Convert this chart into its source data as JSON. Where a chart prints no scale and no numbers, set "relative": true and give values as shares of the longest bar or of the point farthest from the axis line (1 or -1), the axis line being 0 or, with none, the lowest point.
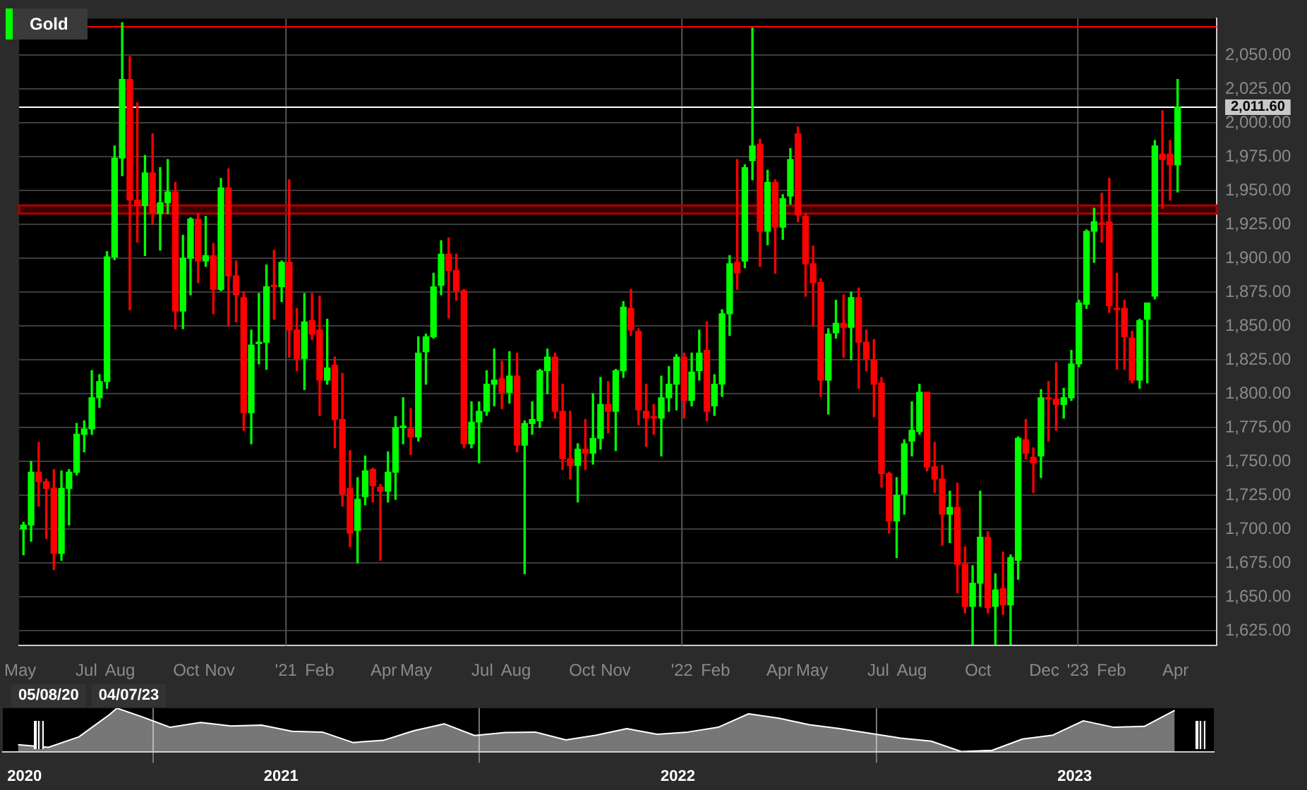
{
  "chart_data": [
    {
      "type": "candlestick",
      "legend": "top left",
      "grid": "y",
      "xlim": [
        "2020-04-30",
        "2023-05-09"
      ],
      "xticks": [
        {
          "value": "2020-05-01",
          "label": "May"
        },
        {
          "value": "2020-07-01",
          "label": "Jul"
        },
        {
          "value": "2020-08-01",
          "label": "Aug"
        },
        {
          "value": "2020-10-01",
          "label": "Oct"
        },
        {
          "value": "2020-11-01",
          "label": "Nov"
        },
        {
          "value": "2021-01-01",
          "label": "'21"
        },
        {
          "value": "2021-02-01",
          "label": "Feb"
        },
        {
          "value": "2021-04-01",
          "label": "Apr"
        },
        {
          "value": "2021-05-01",
          "label": "May"
        },
        {
          "value": "2021-07-01",
          "label": "Jul"
        },
        {
          "value": "2021-08-01",
          "label": "Aug"
        },
        {
          "value": "2021-10-01",
          "label": "Oct"
        },
        {
          "value": "2021-11-01",
          "label": "Nov"
        },
        {
          "value": "2022-01-01",
          "label": "'22"
        },
        {
          "value": "2022-02-01",
          "label": "Feb"
        },
        {
          "value": "2022-04-01",
          "label": "Apr"
        },
        {
          "value": "2022-05-01",
          "label": "May"
        },
        {
          "value": "2022-07-01",
          "label": "Jul"
        },
        {
          "value": "2022-08-01",
          "label": "Aug"
        },
        {
          "value": "2022-10-01",
          "label": "Oct"
        },
        {
          "value": "2022-12-01",
          "label": "Dec"
        },
        {
          "value": "2023-01-01",
          "label": "'23"
        },
        {
          "value": "2023-02-01",
          "label": "Feb"
        },
        {
          "value": "2023-04-01",
          "label": "Apr"
        }
      ],
      "ylim": [
        1614,
        2077
      ],
      "yticks": [
        {
          "value": 1625,
          "label": "1,625.00"
        },
        {
          "value": 1650,
          "label": "1,650.00"
        },
        {
          "value": 1675,
          "label": "1,675.00"
        },
        {
          "value": 1700,
          "label": "1,700.00"
        },
        {
          "value": 1725,
          "label": "1,725.00"
        },
        {
          "value": 1750,
          "label": "1,750.00"
        },
        {
          "value": 1775,
          "label": "1,775.00"
        },
        {
          "value": 1800,
          "label": "1,800.00"
        },
        {
          "value": 1825,
          "label": "1,825.00"
        },
        {
          "value": 1850,
          "label": "1,850.00"
        },
        {
          "value": 1875,
          "label": "1,875.00"
        },
        {
          "value": 1900,
          "label": "1,900.00"
        },
        {
          "value": 1925,
          "label": "1,925.00"
        },
        {
          "value": 1950,
          "label": "1,950.00"
        },
        {
          "value": 1975,
          "label": "1,975.00"
        },
        {
          "value": 2000,
          "label": "2,000.00"
        },
        {
          "value": 2025,
          "label": "2,025.00"
        },
        {
          "value": 2050,
          "label": "2,050.00"
        }
      ],
      "ref_lines": [
        {
          "axis": "x",
          "value": "2021-01-01",
          "color": "#555555"
        },
        {
          "axis": "x",
          "value": "2022-01-01",
          "color": "#555555"
        },
        {
          "axis": "x",
          "value": "2023-01-01",
          "color": "#555555"
        },
        {
          "axis": "y",
          "value": 2071,
          "color": "#ff0000"
        },
        {
          "axis": "y",
          "value": 2011.6,
          "label": "2,011.60",
          "color": "#ffffff"
        }
      ],
      "bands": [
        {
          "axis": "y",
          "from": 1933,
          "to": 1939,
          "color": "#b00000"
        }
      ],
      "series": [
        {
          "name": "Gold",
          "color": "#00ff00",
          "x": [
            "2020-05-04",
            "2020-05-11",
            "2020-05-18",
            "2020-05-25",
            "2020-06-01",
            "2020-06-08",
            "2020-06-15",
            "2020-06-22",
            "2020-06-29",
            "2020-07-06",
            "2020-07-13",
            "2020-07-20",
            "2020-07-27",
            "2020-08-03",
            "2020-08-10",
            "2020-08-17",
            "2020-08-24",
            "2020-08-31",
            "2020-09-07",
            "2020-09-14",
            "2020-09-21",
            "2020-09-28",
            "2020-10-05",
            "2020-10-12",
            "2020-10-19",
            "2020-10-26",
            "2020-11-02",
            "2020-11-09",
            "2020-11-16",
            "2020-11-23",
            "2020-11-30",
            "2020-12-07",
            "2020-12-14",
            "2020-12-21",
            "2020-12-28",
            "2021-01-04",
            "2021-01-11",
            "2021-01-18",
            "2021-01-25",
            "2021-02-01",
            "2021-02-08",
            "2021-02-15",
            "2021-02-22",
            "2021-03-01",
            "2021-03-08",
            "2021-03-15",
            "2021-03-22",
            "2021-03-29",
            "2021-04-05",
            "2021-04-12",
            "2021-04-19",
            "2021-04-26",
            "2021-05-03",
            "2021-05-10",
            "2021-05-17",
            "2021-05-24",
            "2021-05-31",
            "2021-06-07",
            "2021-06-14",
            "2021-06-21",
            "2021-06-28",
            "2021-07-05",
            "2021-07-12",
            "2021-07-19",
            "2021-07-26",
            "2021-08-02",
            "2021-08-09",
            "2021-08-16",
            "2021-08-23",
            "2021-08-30",
            "2021-09-06",
            "2021-09-13",
            "2021-09-20",
            "2021-09-27",
            "2021-10-04",
            "2021-10-11",
            "2021-10-18",
            "2021-10-25",
            "2021-11-01",
            "2021-11-08",
            "2021-11-15",
            "2021-11-22",
            "2021-11-29",
            "2021-12-06",
            "2021-12-13",
            "2021-12-20",
            "2021-12-27",
            "2022-01-03",
            "2022-01-10",
            "2022-01-17",
            "2022-01-24",
            "2022-01-31",
            "2022-02-07",
            "2022-02-14",
            "2022-02-21",
            "2022-02-28",
            "2022-03-07",
            "2022-03-14",
            "2022-03-21",
            "2022-03-28",
            "2022-04-04",
            "2022-04-11",
            "2022-04-18",
            "2022-04-25",
            "2022-05-02",
            "2022-05-09",
            "2022-05-16",
            "2022-05-23",
            "2022-05-30",
            "2022-06-06",
            "2022-06-13",
            "2022-06-20",
            "2022-06-27",
            "2022-07-04",
            "2022-07-11",
            "2022-07-18",
            "2022-07-25",
            "2022-08-01",
            "2022-08-08",
            "2022-08-15",
            "2022-08-22",
            "2022-08-29",
            "2022-09-05",
            "2022-09-12",
            "2022-09-19",
            "2022-09-26",
            "2022-10-03",
            "2022-10-10",
            "2022-10-17",
            "2022-10-24",
            "2022-10-31",
            "2022-11-07",
            "2022-11-14",
            "2022-11-21",
            "2022-11-28",
            "2022-12-05",
            "2022-12-12",
            "2022-12-19",
            "2022-12-26",
            "2023-01-02",
            "2023-01-09",
            "2023-01-16",
            "2023-01-23",
            "2023-01-30",
            "2023-02-06",
            "2023-02-13",
            "2023-02-20",
            "2023-02-27",
            "2023-03-06",
            "2023-03-13",
            "2023-03-20",
            "2023-03-27",
            "2023-04-03"
          ],
          "ohlc": [
            [
              1700,
              1705,
              1681,
              1703
            ],
            [
              1703,
              1750,
              1691,
              1742
            ],
            [
              1742,
              1764,
              1717,
              1735
            ],
            [
              1735,
              1737,
              1693,
              1730
            ],
            [
              1730,
              1744,
              1670,
              1682
            ],
            [
              1682,
              1743,
              1677,
              1730
            ],
            [
              1730,
              1744,
              1703,
              1742
            ],
            [
              1742,
              1778,
              1740,
              1770
            ],
            [
              1770,
              1780,
              1757,
              1774
            ],
            [
              1774,
              1817,
              1770,
              1797
            ],
            [
              1797,
              1814,
              1790,
              1809
            ],
            [
              1809,
              1905,
              1804,
              1901
            ],
            [
              1901,
              1983,
              1899,
              1974
            ],
            [
              1974,
              2074,
              1961,
              2032
            ],
            [
              2032,
              2049,
              1862,
              1943
            ],
            [
              1943,
              2015,
              1912,
              1939
            ],
            [
              1939,
              1976,
              1902,
              1963
            ],
            [
              1963,
              1992,
              1925,
              1933
            ],
            [
              1933,
              1967,
              1906,
              1941
            ],
            [
              1941,
              1973,
              1933,
              1949
            ],
            [
              1949,
              1956,
              1848,
              1861
            ],
            [
              1861,
              1917,
              1848,
              1900
            ],
            [
              1900,
              1930,
              1873,
              1929
            ],
            [
              1929,
              1933,
              1882,
              1898
            ],
            [
              1898,
              1931,
              1894,
              1902
            ],
            [
              1902,
              1911,
              1859,
              1877
            ],
            [
              1877,
              1959,
              1876,
              1952
            ],
            [
              1952,
              1966,
              1850,
              1887
            ],
            [
              1887,
              1898,
              1853,
              1873
            ],
            [
              1871,
              1875,
              1773,
              1786
            ],
            [
              1786,
              1847,
              1763,
              1836
            ],
            [
              1837,
              1874,
              1822,
              1838
            ],
            [
              1838,
              1895,
              1818,
              1879
            ],
            [
              1880,
              1906,
              1855,
              1879
            ],
            [
              1879,
              1898,
              1868,
              1897
            ],
            [
              1897,
              1958,
              1827,
              1847
            ],
            [
              1847,
              1863,
              1817,
              1826
            ],
            [
              1826,
              1874,
              1803,
              1853
            ],
            [
              1854,
              1874,
              1840,
              1844
            ],
            [
              1847,
              1872,
              1784,
              1810
            ],
            [
              1810,
              1855,
              1807,
              1819
            ],
            [
              1821,
              1827,
              1760,
              1781
            ],
            [
              1781,
              1815,
              1717,
              1726
            ],
            [
              1730,
              1758,
              1687,
              1697
            ],
            [
              1699,
              1738,
              1675,
              1722
            ],
            [
              1724,
              1754,
              1718,
              1743
            ],
            [
              1744,
              1745,
              1720,
              1732
            ],
            [
              1731,
              1733,
              1677,
              1728
            ],
            [
              1728,
              1757,
              1720,
              1742
            ],
            [
              1742,
              1783,
              1722,
              1775
            ],
            [
              1775,
              1797,
              1763,
              1776
            ],
            [
              1774,
              1789,
              1755,
              1768
            ],
            [
              1768,
              1842,
              1765,
              1830
            ],
            [
              1831,
              1844,
              1807,
              1842
            ],
            [
              1842,
              1889,
              1841,
              1879
            ],
            [
              1880,
              1913,
              1873,
              1903
            ],
            [
              1903,
              1915,
              1856,
              1891
            ],
            [
              1891,
              1903,
              1869,
              1876
            ],
            [
              1876,
              1877,
              1760,
              1763
            ],
            [
              1763,
              1794,
              1760,
              1779
            ],
            [
              1779,
              1794,
              1749,
              1787
            ],
            [
              1787,
              1817,
              1784,
              1807
            ],
            [
              1807,
              1833,
              1791,
              1810
            ],
            [
              1811,
              1824,
              1789,
              1801
            ],
            [
              1801,
              1831,
              1793,
              1813
            ],
            [
              1813,
              1830,
              1757,
              1762
            ],
            [
              1762,
              1780,
              1667,
              1778
            ],
            [
              1778,
              1794,
              1770,
              1781
            ],
            [
              1780,
              1818,
              1775,
              1817
            ],
            [
              1817,
              1833,
              1800,
              1827
            ],
            [
              1827,
              1830,
              1782,
              1787
            ],
            [
              1787,
              1807,
              1744,
              1752
            ],
            [
              1752,
              1787,
              1737,
              1747
            ],
            [
              1747,
              1763,
              1720,
              1759
            ],
            [
              1759,
              1781,
              1744,
              1756
            ],
            [
              1756,
              1800,
              1748,
              1767
            ],
            [
              1767,
              1812,
              1759,
              1792
            ],
            [
              1792,
              1809,
              1771,
              1787
            ],
            [
              1787,
              1818,
              1758,
              1817
            ],
            [
              1817,
              1868,
              1812,
              1864
            ],
            [
              1863,
              1877,
              1843,
              1847
            ],
            [
              1846,
              1848,
              1777,
              1788
            ],
            [
              1787,
              1807,
              1761,
              1782
            ],
            [
              1783,
              1792,
              1770,
              1782
            ],
            [
              1782,
              1813,
              1754,
              1797
            ],
            [
              1797,
              1820,
              1787,
              1807
            ],
            [
              1807,
              1829,
              1788,
              1827
            ],
            [
              1827,
              1830,
              1782,
              1795
            ],
            [
              1795,
              1830,
              1791,
              1816
            ],
            [
              1817,
              1847,
              1810,
              1830
            ],
            [
              1832,
              1853,
              1780,
              1787
            ],
            [
              1791,
              1814,
              1784,
              1807
            ],
            [
              1807,
              1862,
              1798,
              1859
            ],
            [
              1859,
              1902,
              1843,
              1896
            ],
            [
              1897,
              1973,
              1877,
              1889
            ],
            [
              1898,
              1969,
              1893,
              1967
            ],
            [
              1972,
              2070,
              1958,
              1983
            ],
            [
              1984,
              1988,
              1894,
              1920
            ],
            [
              1920,
              1965,
              1910,
              1956
            ],
            [
              1956,
              1958,
              1889,
              1923
            ],
            [
              1923,
              1947,
              1914,
              1944
            ],
            [
              1946,
              1981,
              1940,
              1973
            ],
            [
              1992,
              1997,
              1927,
              1932
            ],
            [
              1931,
              1933,
              1872,
              1896
            ],
            [
              1896,
              1909,
              1850,
              1882
            ],
            [
              1882,
              1885,
              1798,
              1810
            ],
            [
              1810,
              1848,
              1785,
              1844
            ],
            [
              1845,
              1869,
              1841,
              1852
            ],
            [
              1852,
              1873,
              1827,
              1849
            ],
            [
              1849,
              1875,
              1825,
              1871
            ],
            [
              1871,
              1878,
              1804,
              1838
            ],
            [
              1838,
              1847,
              1817,
              1826
            ],
            [
              1825,
              1840,
              1783,
              1807
            ],
            [
              1808,
              1812,
              1731,
              1741
            ],
            [
              1741,
              1742,
              1697,
              1706
            ],
            [
              1706,
              1738,
              1679,
              1725
            ],
            [
              1726,
              1766,
              1711,
              1763
            ],
            [
              1765,
              1794,
              1754,
              1773
            ],
            [
              1772,
              1807,
              1770,
              1801
            ],
            [
              1801,
              1801,
              1743,
              1746
            ],
            [
              1746,
              1764,
              1727,
              1737
            ],
            [
              1737,
              1747,
              1688,
              1711
            ],
            [
              1711,
              1728,
              1690,
              1716
            ],
            [
              1716,
              1734,
              1653,
              1674
            ],
            [
              1674,
              1687,
              1638,
              1643
            ],
            [
              1643,
              1673,
              1615,
              1660
            ],
            [
              1660,
              1728,
              1643,
              1694
            ],
            [
              1694,
              1698,
              1638,
              1642
            ],
            [
              1643,
              1667,
              1615,
              1655
            ],
            [
              1656,
              1683,
              1637,
              1644
            ],
            [
              1644,
              1681,
              1615,
              1679
            ],
            [
              1677,
              1768,
              1663,
              1767
            ],
            [
              1766,
              1781,
              1752,
              1756
            ],
            [
              1753,
              1760,
              1727,
              1749
            ],
            [
              1754,
              1803,
              1738,
              1797
            ],
            [
              1797,
              1809,
              1765,
              1796
            ],
            [
              1796,
              1823,
              1773,
              1792
            ],
            [
              1792,
              1804,
              1782,
              1797
            ],
            [
              1797,
              1832,
              1795,
              1822
            ],
            [
              1822,
              1869,
              1820,
              1867
            ],
            [
              1866,
              1921,
              1863,
              1920
            ],
            [
              1920,
              1937,
              1897,
              1927
            ],
            [
              1926,
              1948,
              1912,
              1925
            ],
            [
              1927,
              1959,
              1860,
              1865
            ],
            [
              1863,
              1889,
              1818,
              1862
            ],
            [
              1863,
              1869,
              1818,
              1842
            ],
            [
              1841,
              1846,
              1808,
              1810
            ],
            [
              1810,
              1855,
              1804,
              1854
            ],
            [
              1855,
              1867,
              1808,
              1867
            ],
            [
              1872,
              1987,
              1870,
              1983
            ],
            [
              1977,
              2009,
              1937,
              1973
            ],
            [
              1977,
              1987,
              1943,
              1969
            ],
            [
              1969,
              2032,
              1949,
              2011.6
            ]
          ],
          "colors": [
            "#00ff00",
            "#00ff00",
            "#ff0000",
            "#ff0000",
            "#ff0000",
            "#00ff00",
            "#00ff00",
            "#00ff00",
            "#00ff00",
            "#00ff00",
            "#00ff00",
            "#00ff00",
            "#00ff00",
            "#00ff00",
            "#ff0000",
            "#ff0000",
            "#00ff00",
            "#ff0000",
            "#00ff00",
            "#00ff00",
            "#ff0000",
            "#00ff00",
            "#00ff00",
            "#ff0000",
            "#00ff00",
            "#ff0000",
            "#00ff00",
            "#ff0000",
            "#ff0000",
            "#ff0000",
            "#00ff00",
            "#00ff00",
            "#00ff00",
            "#ff0000",
            "#00ff00",
            "#ff0000",
            "#ff0000",
            "#00ff00",
            "#ff0000",
            "#ff0000",
            "#00ff00",
            "#ff0000",
            "#ff0000",
            "#ff0000",
            "#00ff00",
            "#00ff00",
            "#ff0000",
            "#ff0000",
            "#00ff00",
            "#00ff00",
            "#00ff00",
            "#ff0000",
            "#00ff00",
            "#00ff00",
            "#00ff00",
            "#00ff00",
            "#ff0000",
            "#ff0000",
            "#ff0000",
            "#00ff00",
            "#00ff00",
            "#00ff00",
            "#00ff00",
            "#ff0000",
            "#00ff00",
            "#ff0000",
            "#00ff00",
            "#00ff00",
            "#00ff00",
            "#00ff00",
            "#ff0000",
            "#ff0000",
            "#ff0000",
            "#00ff00",
            "#ff0000",
            "#00ff00",
            "#00ff00",
            "#ff0000",
            "#00ff00",
            "#00ff00",
            "#ff0000",
            "#ff0000",
            "#ff0000",
            "#ff0000",
            "#00ff00",
            "#00ff00",
            "#00ff00",
            "#ff0000",
            "#00ff00",
            "#00ff00",
            "#ff0000",
            "#00ff00",
            "#00ff00",
            "#00ff00",
            "#ff0000",
            "#00ff00",
            "#00ff00",
            "#ff0000",
            "#00ff00",
            "#ff0000",
            "#00ff00",
            "#00ff00",
            "#ff0000",
            "#ff0000",
            "#ff0000",
            "#ff0000",
            "#00ff00",
            "#00ff00",
            "#ff0000",
            "#00ff00",
            "#ff0000",
            "#ff0000",
            "#ff0000",
            "#ff0000",
            "#ff0000",
            "#00ff00",
            "#00ff00",
            "#00ff00",
            "#00ff00",
            "#ff0000",
            "#ff0000",
            "#ff0000",
            "#00ff00",
            "#ff0000",
            "#ff0000",
            "#00ff00",
            "#00ff00",
            "#ff0000",
            "#00ff00",
            "#ff0000",
            "#00ff00",
            "#00ff00",
            "#ff0000",
            "#ff0000",
            "#00ff00",
            "#ff0000",
            "#ff0000",
            "#00ff00",
            "#00ff00",
            "#00ff00",
            "#00ff00",
            "#00ff00",
            "#ff0000",
            "#ff0000",
            "#ff0000",
            "#ff0000",
            "#ff0000",
            "#00ff00",
            "#00ff00",
            "#00ff00",
            "#ff0000",
            "#ff0000",
            "#00ff00"
          ]
        }
      ]
    },
    {
      "type": "area",
      "relative": true,
      "color": "#ffffff",
      "grid": "x",
      "xlim": [
        "2020-04-20",
        "2023-05-09"
      ],
      "xticks": [
        {
          "value": "2020-05-10",
          "label": "2020"
        },
        {
          "value": "2021-01-01",
          "label": "2021"
        },
        {
          "value": "2022-01-01",
          "label": "2022"
        },
        {
          "value": "2023-01-01",
          "label": "2023"
        }
      ],
      "annotations": [
        "05/08/20",
        "04/07/23"
      ],
      "x": [
        "2020-05-04",
        "2020-06-01",
        "2020-06-29",
        "2020-07-27",
        "2020-08-03",
        "2020-08-24",
        "2020-09-21",
        "2020-10-19",
        "2020-11-16",
        "2020-12-14",
        "2021-01-11",
        "2021-02-08",
        "2021-03-08",
        "2021-04-05",
        "2021-05-03",
        "2021-05-31",
        "2021-06-28",
        "2021-07-26",
        "2021-08-23",
        "2021-09-20",
        "2021-10-18",
        "2021-11-15",
        "2021-12-13",
        "2022-01-10",
        "2022-02-07",
        "2022-03-07",
        "2022-04-04",
        "2022-05-02",
        "2022-05-30",
        "2022-06-27",
        "2022-07-25",
        "2022-08-22",
        "2022-09-19",
        "2022-10-17",
        "2022-11-14",
        "2022-12-12",
        "2023-01-09",
        "2023-02-06",
        "2023-03-06",
        "2023-04-03"
      ],
      "values": [
        0.16,
        0.1,
        0.34,
        0.85,
        1,
        0.82,
        0.56,
        0.67,
        0.59,
        0.61,
        0.47,
        0.45,
        0.21,
        0.26,
        0.48,
        0.64,
        0.37,
        0.44,
        0.45,
        0.27,
        0.38,
        0.53,
        0.4,
        0.45,
        0.56,
        0.87,
        0.77,
        0.62,
        0.53,
        0.42,
        0.31,
        0.24,
        0,
        0.03,
        0.29,
        0.38,
        0.71,
        0.56,
        0.58,
        0.95
      ]
    }
  ]
}
